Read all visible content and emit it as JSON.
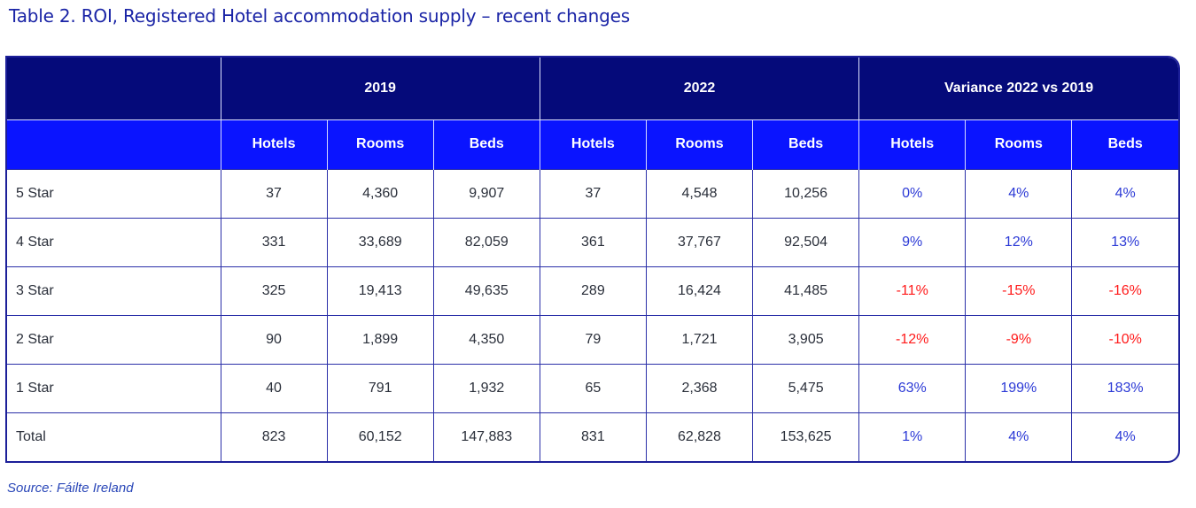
{
  "title": "Table 2. ROI, Registered Hotel accommodation supply – recent changes",
  "source": "Source: Fáilte Ireland",
  "groups": [
    "2019",
    "2022",
    "Variance 2022 vs 2019"
  ],
  "subheaders": [
    "Hotels",
    "Rooms",
    "Beds",
    "Hotels",
    "Rooms",
    "Beds",
    "Hotels",
    "Rooms",
    "Beds"
  ],
  "rows": [
    {
      "label": "5 Star",
      "cells": [
        "37",
        "4,360",
        "9,907",
        "37",
        "4,548",
        "10,256",
        "0%",
        "4%",
        "4%"
      ]
    },
    {
      "label": "4 Star",
      "cells": [
        "331",
        "33,689",
        "82,059",
        "361",
        "37,767",
        "92,504",
        "9%",
        "12%",
        "13%"
      ]
    },
    {
      "label": "3 Star",
      "cells": [
        "325",
        "19,413",
        "49,635",
        "289",
        "16,424",
        "41,485",
        "-11%",
        "-15%",
        "-16%"
      ]
    },
    {
      "label": "2 Star",
      "cells": [
        "90",
        "1,899",
        "4,350",
        "79",
        "1,721",
        "3,905",
        "-12%",
        "-9%",
        "-10%"
      ]
    },
    {
      "label": "1 Star",
      "cells": [
        "40",
        "791",
        "1,932",
        "65",
        "2,368",
        "5,475",
        "63%",
        "199%",
        "183%"
      ]
    },
    {
      "label": "Total",
      "cells": [
        "823",
        "60,152",
        "147,883",
        "831",
        "62,828",
        "153,625",
        "1%",
        "4%",
        "4%"
      ]
    }
  ],
  "colors": {
    "header_dark": "#050a7a",
    "header_bright": "#0a14ff",
    "positive": "#2b39d6",
    "negative": "#ff1a1a"
  }
}
